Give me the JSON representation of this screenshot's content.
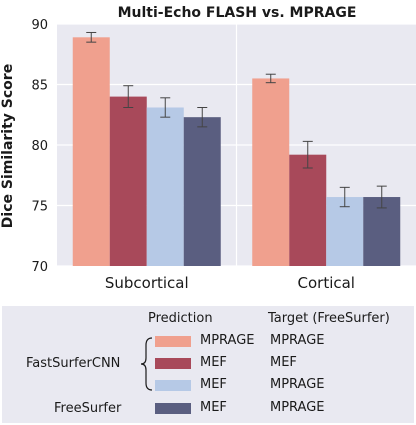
{
  "chart_data": {
    "type": "bar",
    "title": "Multi-Echo FLASH vs. MPRAGE",
    "ylabel": "Dice Similarity Score",
    "xlabel": "",
    "ylim": [
      70,
      90
    ],
    "yticks": [
      70,
      75,
      80,
      85,
      90
    ],
    "categories": [
      "Subcortical",
      "Cortical"
    ],
    "grid": true,
    "series": [
      {
        "name": "FastSurferCNN MPRAGE / MPRAGE",
        "color": "#f0a08e",
        "values": [
          88.9,
          85.5
        ],
        "errors": [
          0.4,
          0.35
        ]
      },
      {
        "name": "FastSurferCNN MEF / MEF",
        "color": "#a8495a",
        "values": [
          84.0,
          79.2
        ],
        "errors": [
          0.9,
          1.1
        ]
      },
      {
        "name": "FastSurferCNN MEF / MPRAGE",
        "color": "#b6c9e6",
        "values": [
          83.1,
          75.7
        ],
        "errors": [
          0.8,
          0.8
        ]
      },
      {
        "name": "FreeSurfer MEF / MPRAGE",
        "color": "#5a5e80",
        "values": [
          82.3,
          75.7
        ],
        "errors": [
          0.8,
          0.9
        ]
      }
    ]
  },
  "legend": {
    "col_prediction": "Prediction",
    "col_target": "Target (FreeSurfer)",
    "group_fastsurfer": "FastSurferCNN",
    "group_freesurfer": "FreeSurfer",
    "rows": [
      {
        "prediction": "MPRAGE",
        "target": "MPRAGE",
        "color": "#f0a08e"
      },
      {
        "prediction": "MEF",
        "target": "MEF",
        "color": "#a8495a"
      },
      {
        "prediction": "MEF",
        "target": "MPRAGE",
        "color": "#b6c9e6"
      },
      {
        "prediction": "MEF",
        "target": "MPRAGE",
        "color": "#5a5e80"
      }
    ]
  }
}
